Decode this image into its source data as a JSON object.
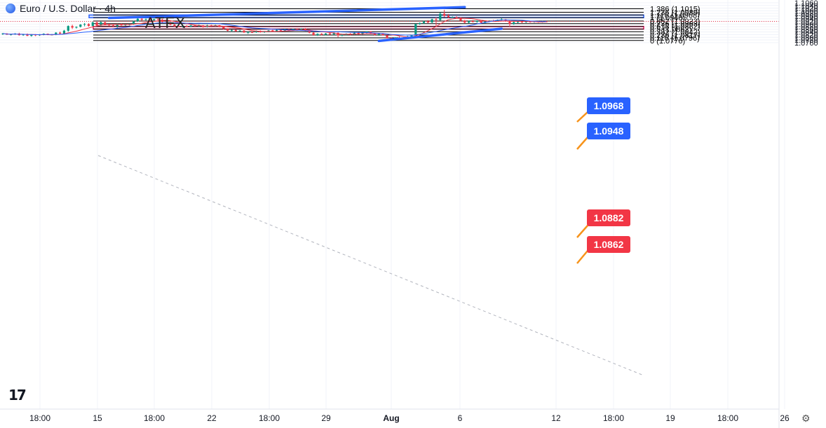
{
  "header": {
    "symbol_title": "Euro / U.S. Dollar · 4h",
    "brand": "ATFX"
  },
  "colors": {
    "up_candle": "#089981",
    "down_candle": "#f23645",
    "ma_fast": "#f23645",
    "ma_slow": "#2962ff",
    "trendline": "#2962ff",
    "resistance_zone": "#2962ff",
    "support_zone": "#e91e63",
    "price_line": "#f23645"
  },
  "chart_data": {
    "type": "candlestick",
    "y_axis": {
      "ticks": [
        "1.0760",
        "1.0780",
        "1.0800",
        "1.0820",
        "1.0840",
        "1.0860",
        "1.0880",
        "1.0900",
        "1.0920",
        "1.0940",
        "1.0960",
        "1.0980",
        "1.1000",
        "1.1020",
        "1.1040",
        "1.1060"
      ],
      "ylim": [
        1.075,
        1.1063
      ]
    },
    "x_axis": {
      "ticks": [
        "18:00",
        "15",
        "18:00",
        "22",
        "18:00",
        "29",
        "Aug",
        "6",
        "12",
        "18:00",
        "19",
        "18:00",
        "26"
      ],
      "bold": [
        "Aug"
      ]
    },
    "candles": [
      [
        1.0825,
        1.0833,
        1.0817,
        1.0829
      ],
      [
        1.0829,
        1.0831,
        1.0818,
        1.082
      ],
      [
        1.082,
        1.0826,
        1.0813,
        1.0823
      ],
      [
        1.0823,
        1.0832,
        1.0818,
        1.0828
      ],
      [
        1.0828,
        1.0834,
        1.0813,
        1.0816
      ],
      [
        1.0816,
        1.0823,
        1.0811,
        1.0821
      ],
      [
        1.0821,
        1.0829,
        1.0809,
        1.0811
      ],
      [
        1.0811,
        1.0824,
        1.0805,
        1.082
      ],
      [
        1.082,
        1.0824,
        1.0809,
        1.0815
      ],
      [
        1.0815,
        1.0824,
        1.0811,
        1.082
      ],
      [
        1.082,
        1.083,
        1.0815,
        1.0827
      ],
      [
        1.0827,
        1.0828,
        1.0816,
        1.0819
      ],
      [
        1.0819,
        1.0825,
        1.0815,
        1.0821
      ],
      [
        1.0821,
        1.0839,
        1.0816,
        1.0835
      ],
      [
        1.0835,
        1.0843,
        1.0822,
        1.0828
      ],
      [
        1.0828,
        1.0856,
        1.0822,
        1.085
      ],
      [
        1.085,
        1.089,
        1.0842,
        1.0885
      ],
      [
        1.0885,
        1.0895,
        1.0863,
        1.0873
      ],
      [
        1.0873,
        1.0882,
        1.0866,
        1.0879
      ],
      [
        1.0879,
        1.0899,
        1.0874,
        1.0896
      ],
      [
        1.0896,
        1.0908,
        1.0883,
        1.09
      ],
      [
        1.09,
        1.0906,
        1.088,
        1.0886
      ],
      [
        1.0886,
        1.0919,
        1.088,
        1.0912
      ],
      [
        1.0912,
        1.0918,
        1.0883,
        1.089
      ],
      [
        1.089,
        1.092,
        1.0883,
        1.0914
      ],
      [
        1.0914,
        1.0916,
        1.089,
        1.0896
      ],
      [
        1.0896,
        1.0902,
        1.0884,
        1.089
      ],
      [
        1.089,
        1.0896,
        1.0876,
        1.0885
      ],
      [
        1.0885,
        1.0903,
        1.087,
        1.09
      ],
      [
        1.09,
        1.0904,
        1.0887,
        1.0891
      ],
      [
        1.0891,
        1.09,
        1.0884,
        1.0896
      ],
      [
        1.0896,
        1.0902,
        1.0888,
        1.0898
      ],
      [
        1.0898,
        1.0925,
        1.0894,
        1.092
      ],
      [
        1.092,
        1.0945,
        1.0916,
        1.094
      ],
      [
        1.094,
        1.0944,
        1.0926,
        1.0932
      ],
      [
        1.0932,
        1.0942,
        1.0927,
        1.0937
      ],
      [
        1.0937,
        1.094,
        1.0928,
        1.093
      ],
      [
        1.093,
        1.0941,
        1.0926,
        1.0938
      ],
      [
        1.0938,
        1.0941,
        1.0929,
        1.0933
      ],
      [
        1.0933,
        1.094,
        1.091,
        1.0915
      ],
      [
        1.0915,
        1.092,
        1.0905,
        1.091
      ],
      [
        1.091,
        1.0914,
        1.089,
        1.0895
      ],
      [
        1.0895,
        1.09,
        1.088,
        1.0884
      ],
      [
        1.0884,
        1.089,
        1.0877,
        1.0882
      ],
      [
        1.0882,
        1.0889,
        1.0874,
        1.0886
      ],
      [
        1.0886,
        1.0892,
        1.0876,
        1.088
      ],
      [
        1.088,
        1.0894,
        1.0876,
        1.0889
      ],
      [
        1.0889,
        1.0895,
        1.0882,
        1.0885
      ],
      [
        1.0885,
        1.0896,
        1.0878,
        1.089
      ],
      [
        1.089,
        1.0892,
        1.0872,
        1.0878
      ],
      [
        1.0878,
        1.0895,
        1.0874,
        1.089
      ],
      [
        1.089,
        1.0894,
        1.0883,
        1.0886
      ],
      [
        1.0886,
        1.0895,
        1.088,
        1.0891
      ],
      [
        1.0891,
        1.0893,
        1.0875,
        1.0878
      ],
      [
        1.0878,
        1.0883,
        1.086,
        1.0864
      ],
      [
        1.0864,
        1.0868,
        1.0846,
        1.085
      ],
      [
        1.085,
        1.0858,
        1.0842,
        1.0855
      ],
      [
        1.0855,
        1.086,
        1.0841,
        1.0846
      ],
      [
        1.0846,
        1.0855,
        1.0842,
        1.0851
      ],
      [
        1.0851,
        1.0854,
        1.0832,
        1.0837
      ],
      [
        1.0837,
        1.0844,
        1.0825,
        1.084
      ],
      [
        1.084,
        1.0845,
        1.0832,
        1.0838
      ],
      [
        1.0838,
        1.0852,
        1.0834,
        1.0848
      ],
      [
        1.0848,
        1.0852,
        1.0835,
        1.084
      ],
      [
        1.084,
        1.0848,
        1.0833,
        1.0844
      ],
      [
        1.0844,
        1.0855,
        1.0838,
        1.0852
      ],
      [
        1.0852,
        1.0856,
        1.084,
        1.0845
      ],
      [
        1.0845,
        1.0858,
        1.0842,
        1.0855
      ],
      [
        1.0855,
        1.0862,
        1.0846,
        1.085
      ],
      [
        1.085,
        1.0866,
        1.0848,
        1.086
      ],
      [
        1.086,
        1.0866,
        1.0848,
        1.0852
      ],
      [
        1.0852,
        1.0865,
        1.0849,
        1.0862
      ],
      [
        1.0862,
        1.0868,
        1.0854,
        1.0857
      ],
      [
        1.0857,
        1.0868,
        1.0852,
        1.0864
      ],
      [
        1.0864,
        1.087,
        1.0848,
        1.085
      ],
      [
        1.085,
        1.0854,
        1.083,
        1.0835
      ],
      [
        1.0835,
        1.084,
        1.0812,
        1.0817
      ],
      [
        1.0817,
        1.083,
        1.081,
        1.0826
      ],
      [
        1.0826,
        1.0832,
        1.0815,
        1.0819
      ],
      [
        1.0819,
        1.0832,
        1.0814,
        1.0829
      ],
      [
        1.0829,
        1.0834,
        1.0818,
        1.0822
      ],
      [
        1.0822,
        1.0838,
        1.0818,
        1.0834
      ],
      [
        1.0834,
        1.0837,
        1.08,
        1.0814
      ],
      [
        1.0814,
        1.0822,
        1.0808,
        1.0818
      ],
      [
        1.0818,
        1.083,
        1.0813,
        1.0826
      ],
      [
        1.0826,
        1.0832,
        1.0816,
        1.082
      ],
      [
        1.082,
        1.0838,
        1.0817,
        1.0833
      ],
      [
        1.0833,
        1.0836,
        1.082,
        1.0824
      ],
      [
        1.0824,
        1.084,
        1.082,
        1.0836
      ],
      [
        1.0836,
        1.0846,
        1.0828,
        1.0843
      ],
      [
        1.0843,
        1.0846,
        1.0826,
        1.083
      ],
      [
        1.083,
        1.0834,
        1.0814,
        1.0818
      ],
      [
        1.0818,
        1.0832,
        1.0812,
        1.0828
      ],
      [
        1.0828,
        1.0831,
        1.0812,
        1.0815
      ],
      [
        1.0815,
        1.0818,
        1.079,
        1.0794
      ],
      [
        1.0794,
        1.0799,
        1.0776,
        1.078
      ],
      [
        1.078,
        1.0802,
        1.0776,
        1.0798
      ],
      [
        1.0798,
        1.0806,
        1.0786,
        1.079
      ],
      [
        1.079,
        1.0802,
        1.0786,
        1.0797
      ],
      [
        1.0797,
        1.0812,
        1.0793,
        1.0806
      ],
      [
        1.0806,
        1.082,
        1.0802,
        1.0817
      ],
      [
        1.0817,
        1.0903,
        1.0814,
        1.09
      ],
      [
        1.09,
        1.0912,
        1.0894,
        1.0908
      ],
      [
        1.0908,
        1.0924,
        1.09,
        1.092
      ],
      [
        1.092,
        1.093,
        1.0906,
        1.0912
      ],
      [
        1.0912,
        1.094,
        1.0908,
        1.0936
      ],
      [
        1.0936,
        1.095,
        1.0885,
        1.093
      ],
      [
        1.093,
        1.0987,
        1.0926,
        1.0978
      ],
      [
        1.0978,
        1.1007,
        1.095,
        1.0962
      ],
      [
        1.0962,
        1.0976,
        1.0945,
        1.095
      ],
      [
        1.095,
        1.0958,
        1.0944,
        1.0952
      ],
      [
        1.0952,
        1.0959,
        1.0944,
        1.0947
      ],
      [
        1.0947,
        1.0952,
        1.092,
        1.0926
      ],
      [
        1.0926,
        1.0932,
        1.0905,
        1.0911
      ],
      [
        1.0911,
        1.0926,
        1.0906,
        1.0922
      ],
      [
        1.0922,
        1.093,
        1.0912,
        1.0916
      ],
      [
        1.0916,
        1.093,
        1.091,
        1.0925
      ],
      [
        1.0925,
        1.0928,
        1.0906,
        1.091
      ],
      [
        1.091,
        1.0921,
        1.0904,
        1.0918
      ],
      [
        1.0918,
        1.0929,
        1.0914,
        1.0926
      ],
      [
        1.0926,
        1.0932,
        1.0918,
        1.0922
      ],
      [
        1.0922,
        1.0934,
        1.0918,
        1.093
      ],
      [
        1.093,
        1.0945,
        1.0924,
        1.0935
      ],
      [
        1.0935,
        1.0938,
        1.092,
        1.0925
      ],
      [
        1.0925,
        1.0929,
        1.088,
        1.09
      ],
      [
        1.09,
        1.0918,
        1.0894,
        1.0914
      ],
      [
        1.0914,
        1.092,
        1.0906,
        1.0917
      ],
      [
        1.0917,
        1.0922,
        1.0909,
        1.0913
      ],
      [
        1.0913,
        1.0921,
        1.0909,
        1.0919
      ],
      [
        1.0919,
        1.0923,
        1.0911,
        1.0915
      ],
      [
        1.0915,
        1.0925,
        1.091,
        1.0921
      ],
      [
        1.0921,
        1.0924,
        1.091,
        1.0916
      ],
      [
        1.0916,
        1.0924,
        1.0911,
        1.092
      ],
      [
        1.092,
        1.0923,
        1.0914,
        1.0918
      ]
    ],
    "moving_averages": [
      {
        "color": "#f23645",
        "period": 9
      },
      {
        "color": "#2962ff",
        "period": 21
      }
    ],
    "fibonacci": [
      {
        "ratio": "0",
        "price": 1.0776,
        "label": "0 (1.0776)"
      },
      {
        "ratio": "0.116",
        "price": 1.0796,
        "label": "0.116 (1.0796)"
      },
      {
        "ratio": "0.236",
        "price": 1.0817,
        "label": "0.236 (1.0817)"
      },
      {
        "ratio": "0.382",
        "price": 1.0842,
        "label": "0.382 (1.0842)"
      },
      {
        "ratio": "0.5",
        "price": 1.0862,
        "label": "0.5 (1.0862)"
      },
      {
        "ratio": "0.618",
        "price": 1.0882,
        "label": "0.618 (1.0882)"
      },
      {
        "ratio": "0.736",
        "price": 1.0903,
        "label": "0.736 (1.0903)"
      },
      {
        "ratio": "0.852",
        "price": 1.0923,
        "label": "0.852 (1.0923)"
      },
      {
        "ratio": "1",
        "price": 1.0948,
        "label": "1 (1.0948)"
      },
      {
        "ratio": "1.116",
        "price": 1.0968,
        "label": "1.116 (1.0968)"
      },
      {
        "ratio": "1.236",
        "price": 1.0989,
        "label": "1.236 (1.0989)"
      },
      {
        "ratio": "1.386",
        "price": 1.1015,
        "label": "1.386 (1.1015)"
      }
    ],
    "zones": [
      {
        "kind": "resistance",
        "low": 1.0948,
        "high": 1.0968,
        "color": "#2962ff"
      },
      {
        "kind": "support",
        "low": 1.0862,
        "high": 1.0882,
        "color": "#e91e63"
      }
    ],
    "price_tags": [
      {
        "value": "1.0968",
        "color": "blue"
      },
      {
        "value": "1.0948",
        "color": "blue"
      },
      {
        "value": "1.0882",
        "color": "red"
      },
      {
        "value": "1.0862",
        "color": "red"
      }
    ],
    "trendlines": [
      {
        "from": {
          "candle": 26,
          "price": 1.0946
        },
        "to": {
          "candle": 113,
          "price": 1.1027
        }
      },
      {
        "from": {
          "candle": 92,
          "price": 1.0773
        },
        "to": {
          "candle": 122,
          "price": 1.0865
        }
      }
    ],
    "current_price": 1.092
  }
}
